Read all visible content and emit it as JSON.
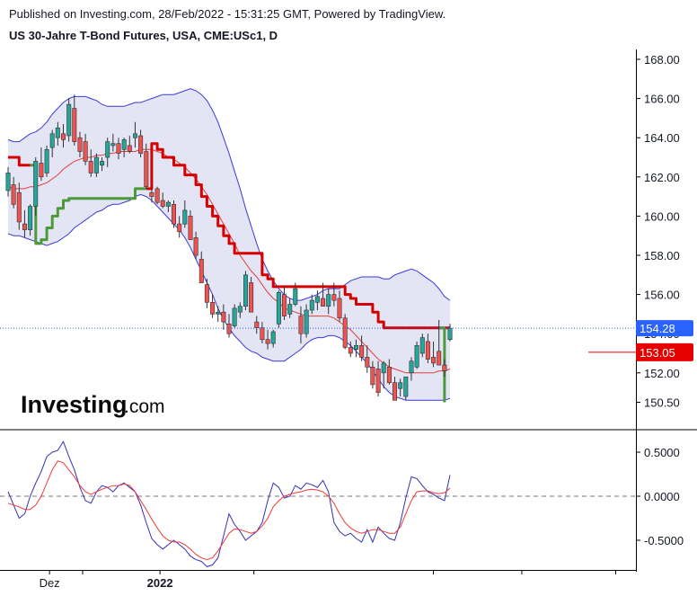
{
  "header": {
    "published": "Published on Investing.com, 28/Feb/2022 - 15:31:25 GMT, Powered by TradingView.",
    "symbol": "US 30-Jahre T-Bond Futures, USA, CME:USc1, D"
  },
  "logo": {
    "main": "Investing",
    "suffix": ".com"
  },
  "colors": {
    "up": "#26a69a",
    "down": "#ef5350",
    "band_fill": "#e3e4f4",
    "band_line": "#3a3ad8",
    "supertrend_down": "#d50000",
    "supertrend_up": "#4c9a3a",
    "ma": "#e0403d",
    "osc_fast": "#3232b4",
    "osc_slow": "#ef3a3a",
    "last_tag": "#2962ff",
    "red_tag": "#e60000"
  },
  "chart_data": [
    {
      "type": "candlestick",
      "title": "US 30-Jahre T-Bond Futures, USA, CME:USc1, D",
      "ylim": [
        149.7,
        168.5
      ],
      "yticks": [
        "168.00",
        "166.00",
        "164.00",
        "162.00",
        "160.00",
        "158.00",
        "156.00",
        "154.00",
        "152.00",
        "150.50"
      ],
      "x_labels": [
        {
          "label": "Dez",
          "bold": false,
          "index": 7.5
        },
        {
          "label": "2022",
          "bold": true,
          "index": 27.5
        }
      ],
      "last_price": "154.28",
      "level_tag": "153.05",
      "ohlc": [
        [
          161.3,
          162.5,
          161.0,
          162.2
        ],
        [
          161.6,
          162.0,
          160.4,
          160.6
        ],
        [
          161.2,
          161.7,
          159.3,
          159.7
        ],
        [
          159.6,
          160.3,
          158.9,
          159.3
        ],
        [
          159.3,
          160.6,
          159.0,
          160.5
        ],
        [
          160.5,
          163.0,
          160.0,
          162.8
        ],
        [
          162.7,
          163.5,
          161.8,
          162.0
        ],
        [
          162.2,
          163.6,
          162.0,
          163.4
        ],
        [
          163.5,
          164.4,
          163.0,
          164.2
        ],
        [
          164.0,
          164.8,
          163.6,
          164.5
        ],
        [
          164.2,
          164.7,
          163.5,
          163.9
        ],
        [
          164.1,
          166.0,
          163.8,
          165.7
        ],
        [
          165.5,
          166.2,
          163.6,
          163.8
        ],
        [
          164.0,
          164.3,
          163.0,
          163.3
        ],
        [
          163.8,
          164.2,
          162.6,
          162.8
        ],
        [
          162.8,
          163.4,
          162.0,
          162.2
        ],
        [
          162.2,
          163.2,
          162.0,
          163.0
        ],
        [
          162.6,
          163.0,
          162.3,
          162.8
        ],
        [
          163.0,
          164.0,
          162.5,
          163.8
        ],
        [
          163.6,
          164.2,
          163.3,
          163.7
        ],
        [
          163.7,
          164.0,
          162.9,
          163.2
        ],
        [
          163.4,
          164.0,
          163.0,
          163.9
        ],
        [
          163.6,
          164.1,
          163.2,
          163.3
        ],
        [
          164.0,
          164.8,
          163.5,
          164.2
        ],
        [
          164.1,
          164.4,
          163.0,
          163.2
        ],
        [
          163.3,
          163.7,
          161.4,
          161.5
        ],
        [
          161.2,
          161.4,
          160.7,
          161.0
        ],
        [
          161.4,
          161.5,
          160.6,
          160.7
        ],
        [
          160.8,
          161.2,
          160.4,
          160.5
        ],
        [
          160.5,
          160.8,
          160.2,
          160.7
        ],
        [
          160.6,
          160.8,
          159.4,
          159.6
        ],
        [
          159.6,
          160.0,
          158.9,
          159.2
        ],
        [
          159.6,
          160.8,
          159.4,
          160.3
        ],
        [
          160.0,
          160.3,
          158.8,
          158.8
        ],
        [
          158.9,
          159.2,
          157.8,
          158.0
        ],
        [
          157.8,
          158.2,
          156.6,
          156.6
        ],
        [
          156.5,
          156.8,
          155.3,
          155.6
        ],
        [
          155.6,
          156.0,
          154.8,
          155.0
        ],
        [
          155.0,
          155.4,
          154.6,
          155.1
        ],
        [
          155.1,
          155.5,
          154.2,
          154.6
        ],
        [
          154.5,
          155.0,
          153.8,
          154.0
        ],
        [
          154.4,
          155.5,
          154.3,
          155.3
        ],
        [
          155.1,
          155.6,
          154.8,
          155.4
        ],
        [
          155.4,
          157.2,
          155.2,
          157.0
        ],
        [
          156.6,
          156.9,
          155.1,
          155.1
        ],
        [
          154.6,
          154.9,
          154.0,
          154.3
        ],
        [
          154.3,
          154.6,
          153.5,
          153.7
        ],
        [
          153.7,
          154.2,
          153.2,
          153.5
        ],
        [
          153.5,
          154.2,
          153.3,
          154.1
        ],
        [
          154.5,
          156.2,
          154.3,
          156.1
        ],
        [
          156.0,
          156.4,
          154.7,
          154.9
        ],
        [
          155.0,
          155.8,
          154.8,
          155.5
        ],
        [
          155.5,
          156.6,
          155.4,
          156.3
        ],
        [
          154.9,
          155.4,
          153.5,
          154.0
        ],
        [
          154.0,
          155.5,
          153.8,
          155.2
        ],
        [
          155.2,
          156.0,
          155.0,
          155.7
        ],
        [
          155.6,
          156.2,
          155.2,
          155.9
        ],
        [
          155.8,
          156.6,
          155.4,
          155.4
        ],
        [
          155.4,
          156.3,
          155.0,
          156.0
        ],
        [
          156.0,
          156.6,
          155.4,
          155.7
        ],
        [
          155.8,
          156.2,
          154.6,
          154.8
        ],
        [
          154.8,
          155.0,
          153.2,
          153.3
        ],
        [
          153.3,
          153.6,
          152.8,
          153.0
        ],
        [
          153.2,
          153.7,
          152.8,
          153.4
        ],
        [
          153.4,
          153.9,
          152.6,
          152.8
        ],
        [
          152.8,
          153.4,
          152.0,
          152.3
        ],
        [
          152.3,
          152.6,
          151.2,
          151.4
        ],
        [
          152.2,
          152.6,
          150.8,
          151.0
        ],
        [
          152.0,
          152.6,
          151.2,
          152.5
        ],
        [
          152.3,
          152.7,
          151.4,
          151.5
        ],
        [
          151.5,
          151.8,
          150.6,
          150.6
        ],
        [
          151.2,
          151.7,
          150.8,
          151.5
        ],
        [
          150.8,
          151.8,
          150.6,
          151.8
        ],
        [
          152.0,
          152.8,
          151.6,
          152.6
        ],
        [
          152.3,
          153.6,
          152.2,
          153.4
        ],
        [
          153.0,
          154.0,
          152.8,
          153.8
        ],
        [
          153.6,
          154.0,
          152.5,
          152.7
        ],
        [
          152.8,
          153.6,
          152.3,
          152.5
        ],
        [
          153.1,
          154.7,
          152.4,
          152.4
        ],
        [
          152.4,
          152.7,
          151.8,
          152.1
        ],
        [
          153.7,
          154.5,
          153.6,
          154.28
        ]
      ],
      "bollinger_upper": [
        163.9,
        163.8,
        163.8,
        164.0,
        164.2,
        164.3,
        164.5,
        164.8,
        165.2,
        165.5,
        165.8,
        166.0,
        166.1,
        166.1,
        166.1,
        166.0,
        165.9,
        165.7,
        165.6,
        165.6,
        165.6,
        165.6,
        165.7,
        165.8,
        165.8,
        165.9,
        166.0,
        166.1,
        166.2,
        166.2,
        166.2,
        166.3,
        166.4,
        166.5,
        166.4,
        166.2,
        165.9,
        165.4,
        164.8,
        164.0,
        163.2,
        162.3,
        161.4,
        160.4,
        159.5,
        158.6,
        157.8,
        157.2,
        156.7,
        156.3,
        156.0,
        155.8,
        155.7,
        155.7,
        155.8,
        155.9,
        156.0,
        156.2,
        156.3,
        156.3,
        156.3,
        156.5,
        156.7,
        156.8,
        156.9,
        156.9,
        156.9,
        156.9,
        156.8,
        156.8,
        157.0,
        157.1,
        157.2,
        157.3,
        157.2,
        157.0,
        156.8,
        156.6,
        156.3,
        155.9,
        155.7
      ],
      "bollinger_lower": [
        159.1,
        159.0,
        159.0,
        158.9,
        158.8,
        158.7,
        158.6,
        158.5,
        158.6,
        158.7,
        158.9,
        159.1,
        159.4,
        159.6,
        159.8,
        160.0,
        160.2,
        160.3,
        160.5,
        160.6,
        160.6,
        160.7,
        160.8,
        161.0,
        161.1,
        161.0,
        160.8,
        160.5,
        160.2,
        159.9,
        159.6,
        159.3,
        158.9,
        158.4,
        157.8,
        157.2,
        156.6,
        156.0,
        155.3,
        154.7,
        154.3,
        153.9,
        153.6,
        153.3,
        153.1,
        153.0,
        152.8,
        152.7,
        152.6,
        152.6,
        152.6,
        152.8,
        153.0,
        153.2,
        153.5,
        153.7,
        153.8,
        153.8,
        153.9,
        153.9,
        153.8,
        153.6,
        153.4,
        153.1,
        152.8,
        152.5,
        152.1,
        151.7,
        151.3,
        151.0,
        150.8,
        150.7,
        150.6,
        150.6,
        150.6,
        150.6,
        150.6,
        150.6,
        150.6,
        150.6,
        150.7
      ],
      "moving_average": [
        161.5,
        161.4,
        161.4,
        161.4,
        161.5,
        161.5,
        161.6,
        161.7,
        161.9,
        162.1,
        162.4,
        162.6,
        162.8,
        162.9,
        163.0,
        163.0,
        163.1,
        163.1,
        163.2,
        163.2,
        163.3,
        163.3,
        163.3,
        163.3,
        163.4,
        163.4,
        163.4,
        163.3,
        163.2,
        163.0,
        162.9,
        162.7,
        162.5,
        162.2,
        161.9,
        161.5,
        161.1,
        160.6,
        160.1,
        159.6,
        159.1,
        158.6,
        158.0,
        157.6,
        157.2,
        156.9,
        156.5,
        156.1,
        155.8,
        155.6,
        155.3,
        155.2,
        155.1,
        155.0,
        154.9,
        154.9,
        154.9,
        154.9,
        154.9,
        154.8,
        154.6,
        154.4,
        154.2,
        153.9,
        153.6,
        153.3,
        153.0,
        152.7,
        152.5,
        152.3,
        152.2,
        152.1,
        152.0,
        152.0,
        152.0,
        152.0,
        152.0,
        152.0,
        152.1,
        152.1,
        152.2
      ],
      "supertrend_red": [
        [
          0,
          163.0
        ],
        [
          1,
          163.0
        ],
        [
          2,
          162.6
        ],
        [
          3,
          162.6
        ],
        [
          4,
          162.6
        ],
        [
          null,
          null
        ],
        [
          25,
          161.4
        ],
        [
          26,
          163.7
        ],
        [
          27,
          163.4
        ],
        [
          28,
          163.0
        ],
        [
          29,
          163.0
        ],
        [
          30,
          162.6
        ],
        [
          31,
          162.6
        ],
        [
          32,
          162.1
        ],
        [
          33,
          162.1
        ],
        [
          34,
          161.6
        ],
        [
          35,
          161.0
        ],
        [
          36,
          160.5
        ],
        [
          37,
          160.0
        ],
        [
          38,
          159.5
        ],
        [
          39,
          159.0
        ],
        [
          40,
          158.6
        ],
        [
          41,
          158.1
        ],
        [
          42,
          158.1
        ],
        [
          43,
          158.1
        ],
        [
          44,
          158.1
        ],
        [
          45,
          158.1
        ],
        [
          46,
          157.0
        ],
        [
          47,
          156.8
        ],
        [
          48,
          156.4
        ],
        [
          49,
          156.4
        ],
        [
          50,
          156.4
        ],
        [
          51,
          156.4
        ],
        [
          52,
          156.4
        ],
        [
          53,
          156.4
        ],
        [
          54,
          156.4
        ],
        [
          55,
          156.4
        ],
        [
          56,
          156.4
        ],
        [
          57,
          156.4
        ],
        [
          58,
          156.4
        ],
        [
          59,
          156.4
        ],
        [
          60,
          156.4
        ],
        [
          61,
          156.0
        ],
        [
          62,
          155.8
        ],
        [
          63,
          155.5
        ],
        [
          64,
          155.5
        ],
        [
          65,
          155.5
        ],
        [
          66,
          155.1
        ],
        [
          67,
          154.6
        ],
        [
          68,
          154.3
        ],
        [
          69,
          154.3
        ],
        [
          70,
          154.3
        ],
        [
          71,
          154.3
        ],
        [
          72,
          154.3
        ],
        [
          73,
          154.3
        ],
        [
          74,
          154.3
        ],
        [
          75,
          154.3
        ],
        [
          76,
          154.3
        ],
        [
          77,
          154.3
        ],
        [
          78,
          154.3
        ],
        [
          79,
          154.3
        ],
        [
          80,
          154.3
        ]
      ],
      "supertrend_green": [
        [
          4,
          162.6
        ],
        [
          5,
          158.6
        ],
        [
          6,
          158.8
        ],
        [
          7,
          159.4
        ],
        [
          8,
          160.0
        ],
        [
          9,
          160.4
        ],
        [
          10,
          160.8
        ],
        [
          11,
          160.9
        ],
        [
          12,
          160.9
        ],
        [
          13,
          160.9
        ],
        [
          14,
          160.9
        ],
        [
          15,
          160.9
        ],
        [
          16,
          160.9
        ],
        [
          17,
          160.9
        ],
        [
          18,
          160.9
        ],
        [
          19,
          160.9
        ],
        [
          20,
          160.9
        ],
        [
          21,
          160.9
        ],
        [
          22,
          160.9
        ],
        [
          23,
          161.4
        ],
        [
          24,
          161.4
        ],
        [
          25,
          161.4
        ],
        [
          null,
          null
        ],
        [
          78,
          154.3
        ],
        [
          79,
          150.5
        ]
      ]
    },
    {
      "type": "line",
      "ylim": [
        -0.8,
        0.68
      ],
      "yticks": [
        "0.5000",
        "0.0000",
        "-0.5000"
      ],
      "series": [
        {
          "key": "fast",
          "values": [
            0.05,
            -0.1,
            -0.25,
            -0.2,
            0.0,
            0.15,
            0.28,
            0.45,
            0.5,
            0.52,
            0.62,
            0.45,
            0.3,
            0.1,
            -0.05,
            -0.08,
            0.05,
            0.12,
            0.1,
            0.05,
            0.12,
            0.15,
            0.1,
            0.05,
            -0.1,
            -0.3,
            -0.48,
            -0.55,
            -0.6,
            -0.55,
            -0.5,
            -0.55,
            -0.6,
            -0.68,
            -0.72,
            -0.74,
            -0.8,
            -0.78,
            -0.7,
            -0.45,
            -0.2,
            -0.32,
            -0.4,
            -0.5,
            -0.45,
            -0.4,
            -0.3,
            -0.05,
            0.15,
            0.1,
            -0.02,
            0.0,
            0.12,
            0.08,
            0.15,
            0.13,
            0.1,
            0.18,
            0.05,
            -0.3,
            -0.4,
            -0.45,
            -0.42,
            -0.48,
            -0.52,
            -0.38,
            -0.52,
            -0.35,
            -0.42,
            -0.48,
            -0.5,
            -0.3,
            -0.02,
            0.22,
            0.2,
            0.12,
            0.05,
            0.02,
            -0.02,
            -0.05,
            0.24
          ]
        },
        {
          "key": "slow",
          "values": [
            -0.08,
            -0.1,
            -0.12,
            -0.15,
            -0.15,
            -0.1,
            0.0,
            0.15,
            0.3,
            0.4,
            0.38,
            0.3,
            0.22,
            0.12,
            0.05,
            0.02,
            0.05,
            0.08,
            0.1,
            0.12,
            0.12,
            0.14,
            0.12,
            0.05,
            -0.05,
            -0.15,
            -0.26,
            -0.36,
            -0.45,
            -0.5,
            -0.52,
            -0.52,
            -0.55,
            -0.6,
            -0.66,
            -0.7,
            -0.72,
            -0.7,
            -0.62,
            -0.52,
            -0.42,
            -0.37,
            -0.38,
            -0.4,
            -0.42,
            -0.4,
            -0.34,
            -0.25,
            -0.12,
            -0.05,
            0.0,
            0.02,
            0.04,
            0.05,
            0.07,
            0.08,
            0.07,
            0.05,
            0.0,
            -0.08,
            -0.2,
            -0.3,
            -0.36,
            -0.4,
            -0.42,
            -0.4,
            -0.38,
            -0.38,
            -0.4,
            -0.42,
            -0.42,
            -0.35,
            -0.2,
            -0.05,
            0.05,
            0.06,
            0.06,
            0.04,
            0.03,
            0.04,
            0.09
          ]
        }
      ]
    }
  ]
}
